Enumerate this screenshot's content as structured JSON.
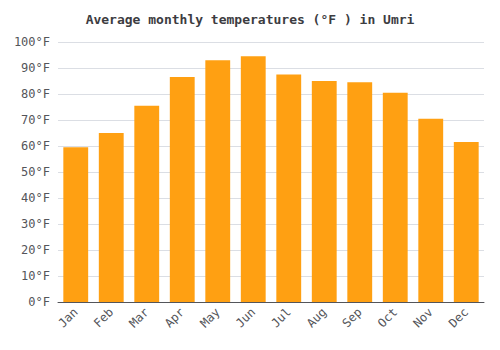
{
  "chart_data": {
    "type": "bar",
    "title": "Average monthly temperatures (°F ) in Umri",
    "categories": [
      "Jan",
      "Feb",
      "Mar",
      "Apr",
      "May",
      "Jun",
      "Jul",
      "Aug",
      "Sep",
      "Oct",
      "Nov",
      "Dec"
    ],
    "values": [
      59.5,
      65.0,
      75.5,
      86.5,
      93.0,
      94.5,
      87.5,
      85.0,
      84.5,
      80.5,
      70.5,
      61.5
    ],
    "color": "#FFA012",
    "ylim": [
      0,
      100
    ],
    "yticks": [
      {
        "value": 0,
        "label": "0°F"
      },
      {
        "value": 10,
        "label": "10°F"
      },
      {
        "value": 20,
        "label": "20°F"
      },
      {
        "value": 30,
        "label": "30°F"
      },
      {
        "value": 40,
        "label": "40°F"
      },
      {
        "value": 50,
        "label": "50°F"
      },
      {
        "value": 60,
        "label": "60°F"
      },
      {
        "value": 70,
        "label": "70°F"
      },
      {
        "value": 80,
        "label": "80°F"
      },
      {
        "value": 90,
        "label": "90°F"
      },
      {
        "value": 100,
        "label": "100°F"
      }
    ],
    "grid": true
  }
}
